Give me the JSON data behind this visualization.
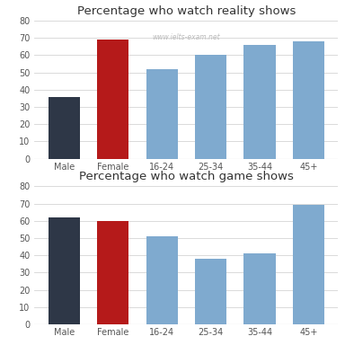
{
  "reality": {
    "title": "Percentage who watch reality shows",
    "categories": [
      "Male",
      "Female",
      "16-24",
      "25-34",
      "35-44",
      "45+"
    ],
    "values": [
      36,
      69,
      52,
      60,
      66,
      68
    ],
    "colors": [
      "#2e3747",
      "#b51a1a",
      "#7faacf",
      "#7faacf",
      "#7faacf",
      "#7faacf"
    ],
    "ylim": [
      0,
      80
    ]
  },
  "game": {
    "title": "Percentage who watch game shows",
    "categories": [
      "Male",
      "Female",
      "16-24",
      "25-34",
      "35-44",
      "45+"
    ],
    "values": [
      62,
      60,
      51,
      38,
      41,
      69
    ],
    "colors": [
      "#2e3747",
      "#b51a1a",
      "#7faacf",
      "#7faacf",
      "#7faacf",
      "#7faacf"
    ],
    "ylim": [
      0,
      80
    ]
  },
  "watermark": "www.ielts-exam.net",
  "bg_color": "#ffffff",
  "grid_color": "#d5d5d5",
  "title_fontsize": 9.5,
  "tick_fontsize": 7,
  "watermark_fontsize": 5.5
}
